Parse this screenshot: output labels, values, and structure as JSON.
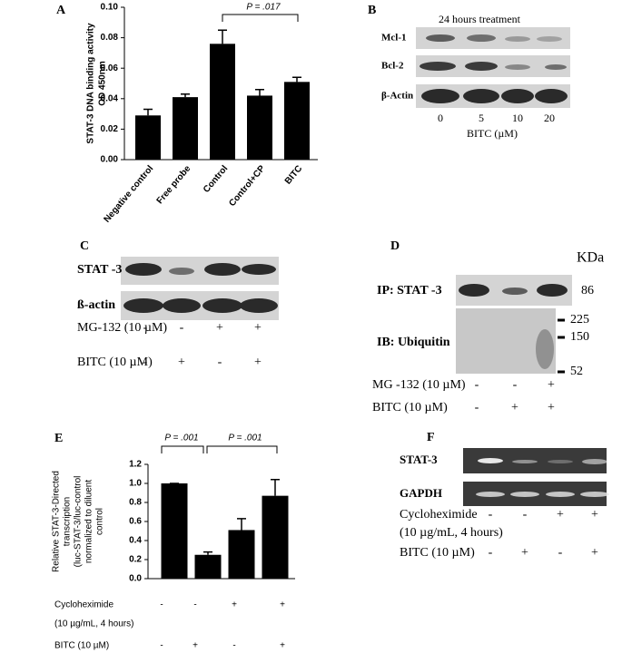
{
  "chart_data": [
    {
      "type": "bar",
      "panel": "A",
      "ylabel": [
        "STAT-3 DNA binding activity",
        "OD 450nm"
      ],
      "categories": [
        "Negative control",
        "Free probe",
        "Control",
        "Control+CP",
        "BITC"
      ],
      "values": [
        0.029,
        0.041,
        0.076,
        0.042,
        0.051
      ],
      "errors": [
        0.004,
        0.002,
        0.009,
        0.004,
        0.003
      ],
      "color": "#000000",
      "ylim": [
        0,
        0.1
      ],
      "yticks": [
        {
          "value": 0,
          "label": "0.00"
        },
        {
          "value": 0.02,
          "label": "0.02"
        },
        {
          "value": 0.04,
          "label": "0.04"
        },
        {
          "value": 0.06,
          "label": "0.06"
        },
        {
          "value": 0.08,
          "label": "0.08"
        },
        {
          "value": 0.1,
          "label": "0.10"
        }
      ],
      "annotations": [
        "P = .017"
      ]
    },
    {
      "type": "bar",
      "panel": "E",
      "ylabel": [
        "Relative STAT-3-Directed",
        "transcription",
        "(luc-STAT-3/luc-control",
        "normalized to diluent",
        "control"
      ],
      "values": [
        1.0,
        0.25,
        0.51,
        0.87
      ],
      "errors": [
        0,
        0.03,
        0.12,
        0.17
      ],
      "color": "#000000",
      "ylim": [
        0,
        1.2
      ],
      "yticks": [
        {
          "value": 0,
          "label": "0.0"
        },
        {
          "value": 0.2,
          "label": "0.2"
        },
        {
          "value": 0.4,
          "label": "0.4"
        },
        {
          "value": 0.6,
          "label": "0.6"
        },
        {
          "value": 0.8,
          "label": "0.8"
        },
        {
          "value": 1.0,
          "label": "1.0"
        },
        {
          "value": 1.2,
          "label": "1.2"
        }
      ],
      "annotations": [
        "P = .001",
        "P = .001"
      ],
      "conditions": [
        {
          "label": [
            "Cycloheximide",
            "(10 µg/mL, 4 hours)"
          ],
          "signs": [
            "-",
            "-",
            "+",
            "+"
          ]
        },
        {
          "label": [
            "BITC (10 µM)"
          ],
          "signs": [
            "-",
            "+",
            "-",
            "+"
          ]
        }
      ]
    }
  ],
  "panels": {
    "B": {
      "label": "B",
      "title": "24 hours treatment",
      "rows": [
        "Mcl-1",
        "Bcl-2",
        "β-Actin"
      ],
      "lanes": [
        "0",
        "5",
        "10",
        "20"
      ],
      "xlabel": "BITC (µM)"
    },
    "C": {
      "label": "C",
      "rows": [
        "STAT -3",
        "ß-actin"
      ],
      "conditions": [
        {
          "label": "MG-132 (10 µM)",
          "signs": [
            "-",
            "-",
            "+",
            "+"
          ]
        },
        {
          "label": "BITC (10 µM)",
          "signs": [
            "-",
            "+",
            "-",
            "+"
          ]
        }
      ]
    },
    "D": {
      "label": "D",
      "unit": "KDa",
      "rows": [
        "IP: STAT  -3",
        "IB: Ubiquitin"
      ],
      "markers": [
        86,
        225,
        150,
        52
      ],
      "conditions": [
        {
          "label": "MG -132 (10  µM)",
          "signs": [
            "-",
            "-",
            "+"
          ]
        },
        {
          "label": "BITC (10  µM)",
          "signs": [
            "-",
            "+",
            "+"
          ]
        }
      ]
    },
    "F": {
      "label": "F",
      "rows": [
        "STAT-3",
        "GAPDH"
      ],
      "conditions": [
        {
          "label": [
            "Cycloheximide",
            "(10 µg/mL, 4 hours)"
          ],
          "signs": [
            "-",
            "-",
            "+",
            "+"
          ]
        },
        {
          "label": [
            "BITC (10 µM)"
          ],
          "signs": [
            "-",
            "+",
            "-",
            "+"
          ]
        }
      ]
    }
  }
}
